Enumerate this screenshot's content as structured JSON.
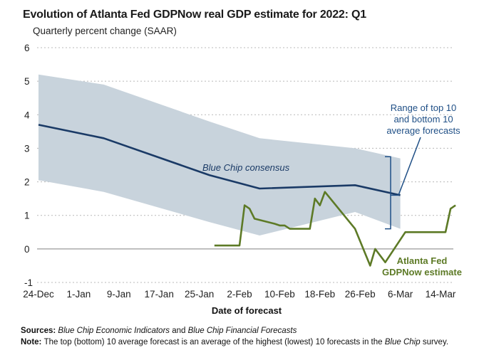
{
  "title": "Evolution of Atlanta Fed GDPNow real GDP estimate for 2022: Q1",
  "subtitle": "Quarterly percent change (SAAR)",
  "colors": {
    "band": "#c8d3dc",
    "bluechip": "#1a3a66",
    "gdpnow": "#5d7a26",
    "annotation": "#1f4f86"
  },
  "chart_data": {
    "type": "line",
    "title": "Evolution of Atlanta Fed GDPNow real GDP estimate for 2022: Q1",
    "ylabel": "Quarterly percent change (SAAR)",
    "xlabel": "Date of forecast",
    "ylim": [
      -1,
      6
    ],
    "yticks": [
      "6",
      "5",
      "4",
      "3",
      "2",
      "1",
      "0",
      "-1"
    ],
    "xlim_days": [
      0,
      84
    ],
    "xtick_labels": [
      "24-Dec",
      "1-Jan",
      "9-Jan",
      "17-Jan",
      "25-Jan",
      "2-Feb",
      "10-Feb",
      "18-Feb",
      "26-Feb",
      "6-Mar",
      "14-Mar"
    ],
    "x_note": "x values are days after 24-Dec",
    "series": [
      {
        "name": "Blue Chip consensus",
        "points": [
          [
            0,
            3.7
          ],
          [
            13,
            3.3
          ],
          [
            34,
            2.2
          ],
          [
            44,
            1.8
          ],
          [
            63,
            1.9
          ],
          [
            72,
            1.6
          ]
        ]
      },
      {
        "name": "Atlanta Fed GDPNow estimate",
        "points": [
          [
            35,
            0.1
          ],
          [
            40,
            0.1
          ],
          [
            41,
            1.3
          ],
          [
            42,
            1.2
          ],
          [
            43,
            0.9
          ],
          [
            47,
            0.75
          ],
          [
            48,
            0.7
          ],
          [
            49,
            0.7
          ],
          [
            50,
            0.6
          ],
          [
            54,
            0.6
          ],
          [
            55,
            1.5
          ],
          [
            56,
            1.3
          ],
          [
            57,
            1.7
          ],
          [
            63,
            0.6
          ],
          [
            66,
            -0.5
          ],
          [
            67,
            0
          ],
          [
            69,
            -0.4
          ],
          [
            73,
            0.5
          ],
          [
            81,
            0.5
          ],
          [
            82,
            1.2
          ],
          [
            83,
            1.3
          ]
        ]
      }
    ],
    "band": {
      "name": "Range of top 10 and bottom 10 average forecasts",
      "upper": [
        [
          0,
          5.2
        ],
        [
          13,
          4.9
        ],
        [
          34,
          3.8
        ],
        [
          44,
          3.3
        ],
        [
          63,
          3.0
        ],
        [
          72,
          2.7
        ]
      ],
      "lower": [
        [
          0,
          2.05
        ],
        [
          13,
          1.7
        ],
        [
          34,
          0.8
        ],
        [
          44,
          0.4
        ],
        [
          63,
          1.1
        ],
        [
          72,
          0.6
        ]
      ]
    },
    "annotations": {
      "bluechip_label": "Blue Chip consensus",
      "range_label": [
        "Range of top 10",
        "and bottom 10",
        "average forecasts"
      ],
      "gdpnow_label": [
        "Atlanta Fed",
        "GDPNow estimate"
      ]
    }
  },
  "footnotes": {
    "sources_prefix": "Sources: ",
    "sources_title1": "Blue Chip Economic Indicators",
    "sources_and": " and ",
    "sources_title2": "Blue Chip Financial Forecasts",
    "note_prefix": "Note: ",
    "note_text": "The top (bottom) 10 average forecast is an average of the highest (lowest) 10 forecasts in the ",
    "note_italic": "Blue Chip",
    "note_end": " survey."
  }
}
